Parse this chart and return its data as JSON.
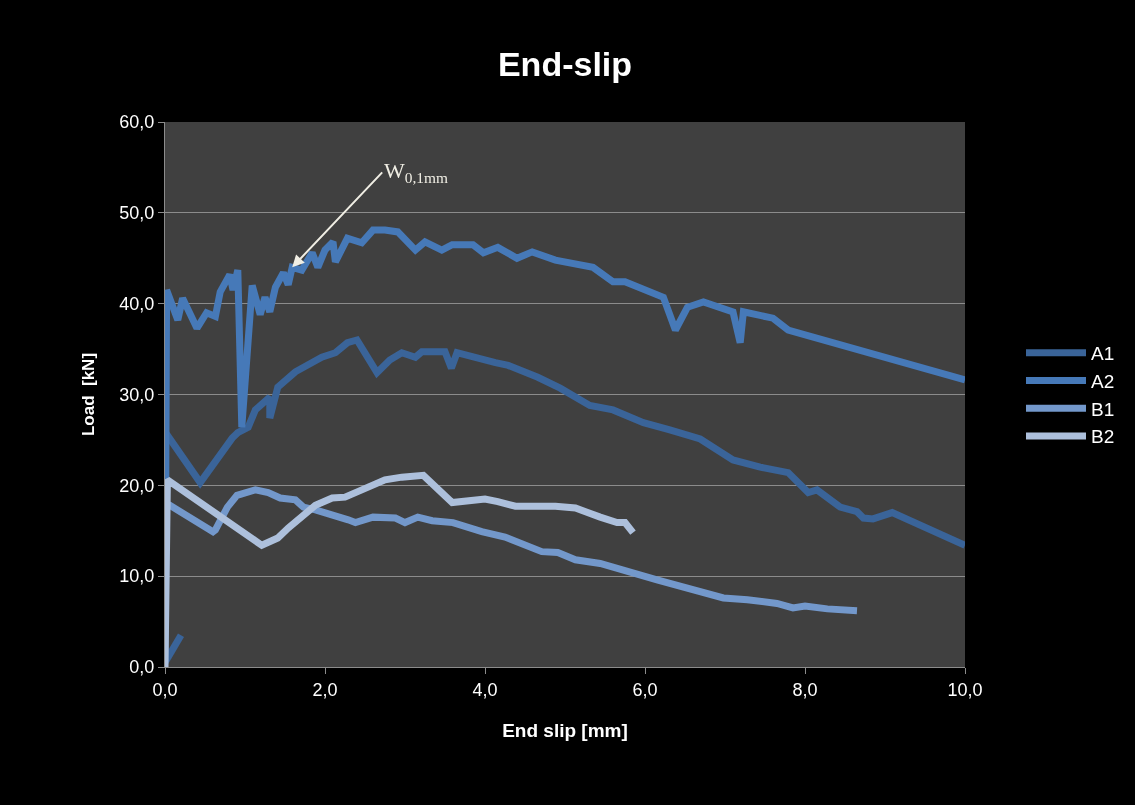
{
  "chart_data": {
    "type": "line",
    "title": "End-slip",
    "xlabel": "End slip [mm]",
    "ylabel": "Load  [kN]",
    "xlim": [
      0,
      10
    ],
    "ylim": [
      0,
      60
    ],
    "xticks": [
      {
        "value": 0,
        "label": "0,0"
      },
      {
        "value": 2,
        "label": "2,0"
      },
      {
        "value": 4,
        "label": "4,0"
      },
      {
        "value": 6,
        "label": "6,0"
      },
      {
        "value": 8,
        "label": "8,0"
      },
      {
        "value": 10,
        "label": "10,0"
      }
    ],
    "yticks": [
      {
        "value": 0,
        "label": "0,0"
      },
      {
        "value": 10,
        "label": "10,0"
      },
      {
        "value": 20,
        "label": "20,0"
      },
      {
        "value": 30,
        "label": "30,0"
      },
      {
        "value": 40,
        "label": "40,0"
      },
      {
        "value": 50,
        "label": "50,0"
      },
      {
        "value": 60,
        "label": "60,0"
      }
    ],
    "grid": "y",
    "legend": "right",
    "marker": "none",
    "line_style": "solid",
    "annotations": [
      {
        "text": "W$_{0,1mm}$",
        "x": 1.59,
        "y": 44.0
      }
    ],
    "series": [
      {
        "name": "A1",
        "color": "#3a6499",
        "x": [
          0,
          0.2,
          0.1,
          0,
          0.44,
          0.84,
          0.91,
          1.04,
          1.13,
          1.31,
          1.31,
          1.41,
          1.63,
          1.96,
          2.13,
          2.28,
          2.4,
          2.65,
          2.81,
          2.96,
          3.13,
          3.21,
          3.5,
          3.58,
          3.65,
          4.13,
          4.29,
          4.66,
          4.94,
          5.31,
          5.6,
          5.98,
          6.31,
          6.69,
          7.1,
          7.44,
          7.79,
          8.04,
          8.15,
          8.44,
          8.65,
          8.73,
          8.85,
          9.09,
          10
        ],
        "values": [
          0.5,
          3.5,
          null,
          25.9,
          20.3,
          25.2,
          25.8,
          26.4,
          28.3,
          29.7,
          27.4,
          30.8,
          32.5,
          34.1,
          34.6,
          35.7,
          36.0,
          32.4,
          33.8,
          34.6,
          34.1,
          34.7,
          34.7,
          32.9,
          34.6,
          33.5,
          33.2,
          31.9,
          30.7,
          28.8,
          28.3,
          26.9,
          26.1,
          25.1,
          22.8,
          22.0,
          21.4,
          19.2,
          19.5,
          17.6,
          17.1,
          16.4,
          16.3,
          17.0,
          13.4
        ]
      },
      {
        "name": "A2",
        "color": "#4679b8",
        "x": [
          0,
          0.02,
          0.16,
          0.22,
          0.4,
          0.52,
          0.63,
          0.69,
          0.81,
          0.85,
          0.91,
          0.96,
          1.09,
          1.19,
          1.25,
          1.31,
          1.38,
          1.48,
          1.54,
          1.59,
          1.71,
          1.84,
          1.91,
          2.0,
          2.1,
          2.13,
          2.28,
          2.46,
          2.6,
          2.75,
          2.91,
          3.13,
          3.25,
          3.46,
          3.59,
          3.85,
          3.98,
          4.16,
          4.4,
          4.59,
          4.88,
          5.35,
          5.6,
          5.75,
          6.23,
          6.38,
          6.53,
          6.73,
          7.1,
          7.19,
          7.23,
          7.6,
          7.79,
          10
        ],
        "values": [
          0.5,
          41.5,
          38.2,
          40.6,
          37.3,
          39.0,
          38.6,
          41.3,
          43.2,
          41.5,
          43.7,
          26.4,
          42.0,
          38.8,
          40.7,
          39.1,
          41.8,
          43.4,
          42.1,
          44.0,
          43.7,
          45.6,
          44.0,
          45.9,
          46.8,
          44.6,
          47.2,
          46.7,
          48.1,
          48.1,
          47.9,
          45.9,
          46.8,
          45.9,
          46.5,
          46.5,
          45.6,
          46.2,
          45.0,
          45.7,
          44.8,
          44.0,
          42.4,
          42.4,
          40.7,
          37.1,
          39.6,
          40.2,
          39.1,
          35.7,
          39.1,
          38.4,
          37.1,
          31.6
        ]
      },
      {
        "name": "B1",
        "color": "#7398cb",
        "x": [
          0,
          0.06,
          0.6,
          0.63,
          0.78,
          0.9,
          1.13,
          1.29,
          1.44,
          1.63,
          1.73,
          1.88,
          2.29,
          2.38,
          2.6,
          2.88,
          3.0,
          3.16,
          3.34,
          3.6,
          3.96,
          4.25,
          4.71,
          4.91,
          5.13,
          5.44,
          6.15,
          6.98,
          7.28,
          7.65,
          7.85,
          8.0,
          8.28,
          8.65
        ],
        "values": [
          17.8,
          17.8,
          14.9,
          15.1,
          17.6,
          18.9,
          19.5,
          19.2,
          18.6,
          18.4,
          17.6,
          17.3,
          16.2,
          15.9,
          16.5,
          16.4,
          15.9,
          16.5,
          16.1,
          15.9,
          14.9,
          14.3,
          12.7,
          12.6,
          11.8,
          11.4,
          9.6,
          7.6,
          7.4,
          7.0,
          6.5,
          6.7,
          6.4,
          6.2
        ]
      },
      {
        "name": "B2",
        "color": "#adc0dc",
        "x": [
          0,
          0.03,
          1.21,
          1.41,
          1.54,
          1.88,
          2.09,
          2.25,
          2.46,
          2.75,
          2.96,
          3.23,
          3.59,
          4.0,
          4.16,
          4.38,
          4.88,
          5.13,
          5.44,
          5.65,
          5.75,
          5.85
        ],
        "values": [
          0,
          20.6,
          13.4,
          14.2,
          15.3,
          17.8,
          18.6,
          18.7,
          19.5,
          20.6,
          20.9,
          21.1,
          18.1,
          18.5,
          18.2,
          17.7,
          17.7,
          17.5,
          16.5,
          15.9,
          15.9,
          14.8
        ]
      }
    ]
  }
}
